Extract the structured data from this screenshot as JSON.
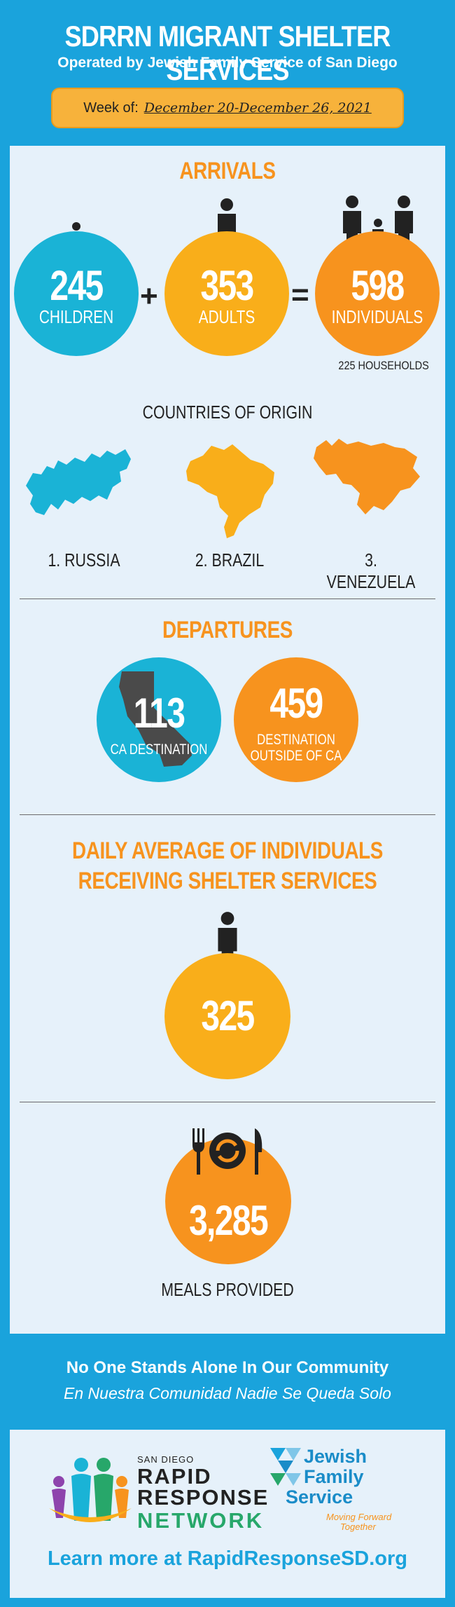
{
  "header": {
    "title": "SDRRN MIGRANT SHELTER SERVICES",
    "subtitle": "Operated by Jewish Family Service of San Diego",
    "week_label": "Week of:",
    "week_value": "December 20-December 26, 2021"
  },
  "arrivals": {
    "title": "ARRIVALS",
    "children_value": "245",
    "children_label": "CHILDREN",
    "plus": "+",
    "adults_value": "353",
    "adults_label": "ADULTS",
    "equals": "=",
    "individuals_value": "598",
    "individuals_label": "INDIVIDUALS",
    "households": "225 HOUSEHOLDS"
  },
  "origin": {
    "title": "COUNTRIES OF ORIGIN",
    "countries": [
      "1. RUSSIA",
      "2. BRAZIL",
      "3. VENEZUELA"
    ]
  },
  "departures": {
    "title": "DEPARTURES",
    "ca_value": "113",
    "ca_label": "CA DESTINATION",
    "out_value": "459",
    "out_label_1": "DESTINATION",
    "out_label_2": "OUTSIDE OF CA"
  },
  "daily": {
    "title_1": "DAILY AVERAGE OF INDIVIDUALS",
    "title_2": "RECEIVING SHELTER SERVICES",
    "value": "325"
  },
  "meals": {
    "value": "3,285",
    "label": "MEALS PROVIDED"
  },
  "footer": {
    "line1": "No One Stands Alone In Our Community",
    "line2": "En Nuestra Comunidad Nadie Se Queda Solo",
    "sdrrn_small": "SAN DIEGO",
    "sdrrn_line1": "RAPID",
    "sdrrn_line2": "RESPONSE",
    "sdrrn_line3": "NETWORK",
    "jfs_line1": "Jewish",
    "jfs_line2": "Family",
    "jfs_line3": "Service",
    "jfs_tag1": "Moving Forward",
    "jfs_tag2": "Together",
    "learn_more": "Learn more at RapidResponseSD.org"
  },
  "colors": {
    "background": "#1aa3dc",
    "panel": "#e6f1fa",
    "teal": "#1ab3d6",
    "yellow": "#f9ae1a",
    "orange": "#f7931e"
  }
}
